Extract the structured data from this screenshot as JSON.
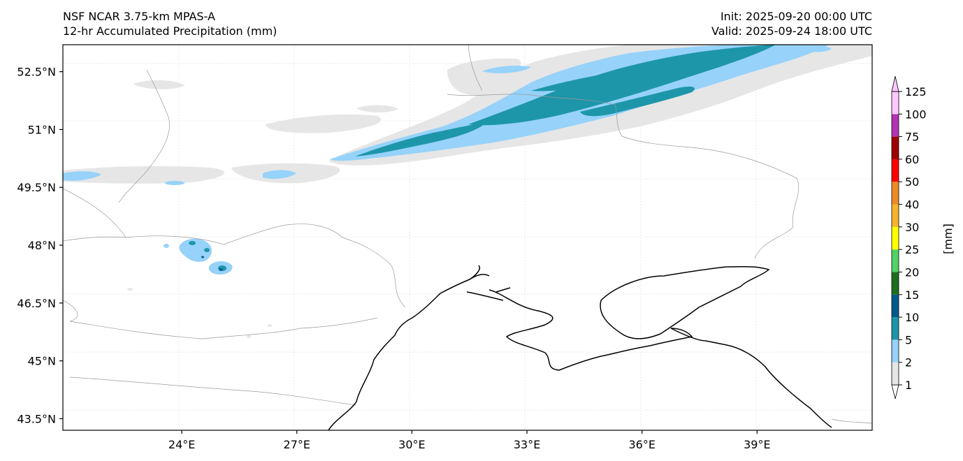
{
  "title": {
    "left_line1": "NSF NCAR 3.75-km MPAS-A",
    "left_line2": "12-hr Accumulated Precipitation (mm)",
    "right_line1": "Init: 2025-09-20 00:00 UTC",
    "right_line2": "Valid: 2025-09-24 18:00 UTC"
  },
  "axes": {
    "lat_labels": [
      "52.5°N",
      "51°N",
      "49.5°N",
      "48°N",
      "46.5°N",
      "45°N",
      "43.5°N"
    ],
    "lat_values": [
      52.5,
      51,
      49.5,
      48,
      46.5,
      45,
      43.5
    ],
    "lon_labels": [
      "24°E",
      "27°E",
      "30°E",
      "33°E",
      "36°E",
      "39°E"
    ],
    "lon_values": [
      24,
      27,
      30,
      33,
      36,
      39
    ],
    "lat_range": [
      43.2,
      53.2
    ],
    "lon_range": [
      20.9,
      42.0
    ]
  },
  "colorbar": {
    "unit_label": "[mm]",
    "levels": [
      "1",
      "2",
      "5",
      "10",
      "15",
      "20",
      "25",
      "30",
      "40",
      "50",
      "60",
      "75",
      "100",
      "125"
    ],
    "colors": [
      "#e6e6e6",
      "#96d2fa",
      "#1e96aa",
      "#005a8c",
      "#1e6e1e",
      "#50d264",
      "#ffff00",
      "#f5b42d",
      "#eb8c28",
      "#ff0000",
      "#a00000",
      "#b432b4",
      "#ffc8ff"
    ]
  }
}
